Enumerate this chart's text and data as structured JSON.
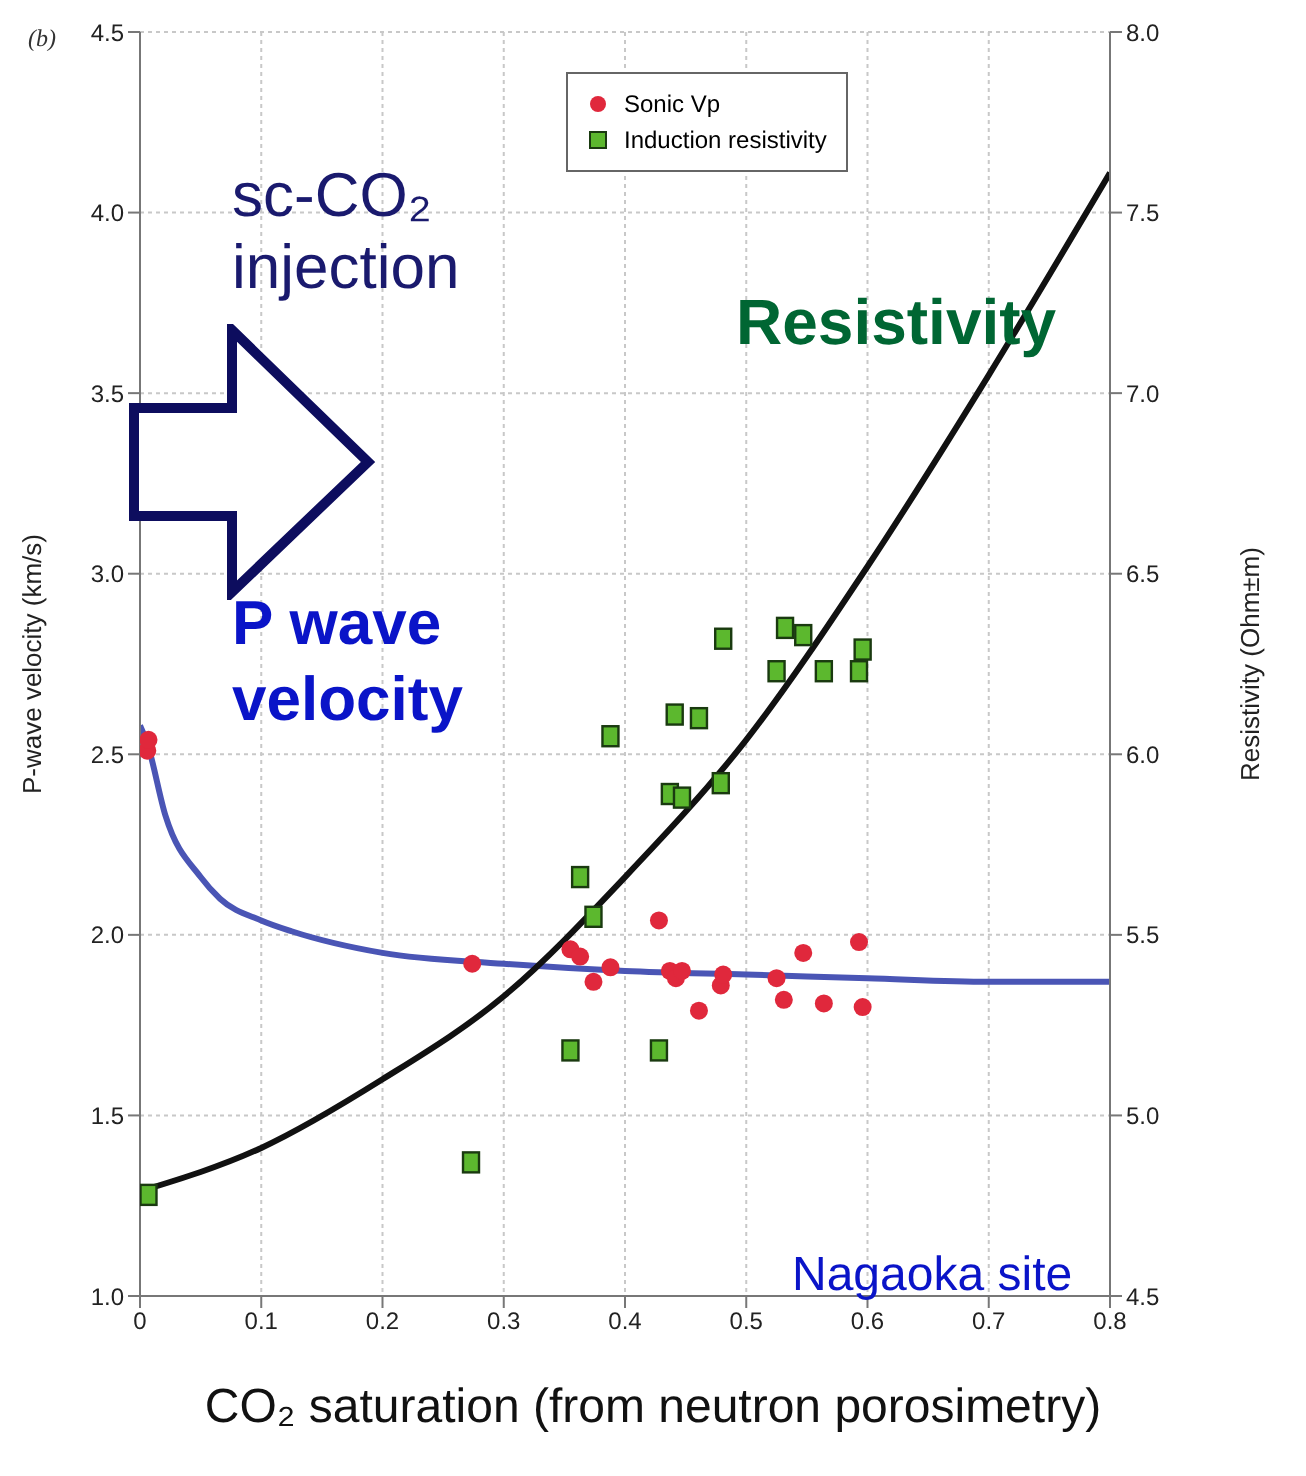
{
  "chart_data": {
    "type": "scatter",
    "xlabel": "CO₂ saturation (from neutron porosimetry)",
    "ylabel": "P-wave velocity (km/s)",
    "y2label": "Resistivity (Ohm±m)",
    "xlim": [
      0,
      0.8
    ],
    "xticks": [
      0,
      0.1,
      0.2,
      0.3,
      0.4,
      0.5,
      0.6,
      0.7,
      0.8
    ],
    "ylim": [
      1.0,
      4.5
    ],
    "yticks": [
      {
        "value": 1.0,
        "label": "1.0"
      },
      1.5,
      {
        "value": 2.0,
        "label": "2.0"
      },
      2.5,
      {
        "value": 3.0,
        "label": "3.0"
      },
      3.5,
      {
        "value": 4.0,
        "label": "4.0"
      },
      4.5
    ],
    "y2lim": [
      4.5,
      8.0
    ],
    "y2ticks": [
      4.5,
      {
        "value": 5.0,
        "label": "5.0"
      },
      5.5,
      {
        "value": 6.0,
        "label": "6.0"
      },
      6.5,
      {
        "value": 7.0,
        "label": "7.0"
      },
      7.5,
      {
        "value": 8.0,
        "label": "8.0"
      }
    ],
    "grid": true,
    "legend": "top",
    "series": [
      {
        "name": "Sonic Vp",
        "marker": "circle",
        "color": "#e0283c",
        "x": [
          0.006,
          0.007,
          0.274,
          0.355,
          0.363,
          0.374,
          0.388,
          0.428,
          0.437,
          0.442,
          0.447,
          0.461,
          0.479,
          0.481,
          0.525,
          0.531,
          0.547,
          0.564,
          0.593,
          0.596
        ],
        "values": [
          2.51,
          2.54,
          1.92,
          1.96,
          1.94,
          1.87,
          1.91,
          2.04,
          1.9,
          1.88,
          1.9,
          1.79,
          1.86,
          1.89,
          1.88,
          1.82,
          1.95,
          1.81,
          1.98,
          1.8
        ]
      },
      {
        "name": "Induction resistivity",
        "marker": "square",
        "axis": "y2",
        "color": "#5cb82e",
        "x": [
          0.007,
          0.273,
          0.355,
          0.363,
          0.374,
          0.388,
          0.428,
          0.437,
          0.441,
          0.447,
          0.461,
          0.479,
          0.481,
          0.525,
          0.532,
          0.547,
          0.564,
          0.593,
          0.596
        ],
        "values": [
          4.78,
          4.87,
          5.18,
          5.66,
          5.55,
          6.05,
          5.18,
          5.89,
          6.11,
          5.88,
          6.1,
          5.92,
          6.32,
          6.23,
          6.35,
          6.33,
          6.23,
          6.23,
          6.29
        ]
      },
      {
        "type": "line",
        "marker": "none",
        "color": "#4a55b5",
        "x": [
          0,
          0.006,
          0.021,
          0.05,
          0.066,
          0.1,
          0.125,
          0.2,
          0.3,
          0.4,
          0.5,
          0.6,
          0.7,
          0.8
        ],
        "values": [
          2.58,
          2.53,
          2.33,
          2.16,
          2.1,
          2.04,
          2.01,
          1.95,
          1.92,
          1.9,
          1.89,
          1.88,
          1.87,
          1.87
        ]
      },
      {
        "type": "line",
        "marker": "none",
        "axis": "y2",
        "color": "#111111",
        "x": [
          0,
          0.1,
          0.2,
          0.3,
          0.4,
          0.5,
          0.6,
          0.7,
          0.8
        ],
        "values": [
          4.79,
          4.91,
          5.1,
          5.33,
          5.66,
          6.04,
          6.52,
          7.05,
          7.61
        ]
      }
    ],
    "annotations": [
      "(b)",
      "sc-CO₂ injection",
      "Resistivity",
      "P wave velocity",
      "Nagaoka site"
    ]
  }
}
